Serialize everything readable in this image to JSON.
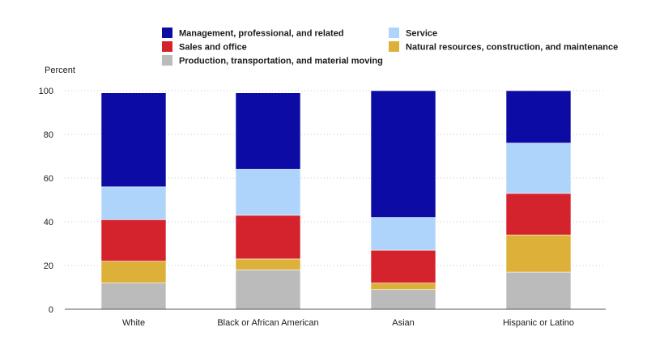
{
  "chart_data": {
    "type": "bar",
    "stacked": true,
    "categories": [
      "White",
      "Black or African American",
      "Asian",
      "Hispanic or Latino"
    ],
    "series": [
      {
        "name": "Production, transportation, and material moving",
        "color": "#bbbbbb",
        "values": [
          12,
          18,
          9,
          17
        ]
      },
      {
        "name": "Natural resources, construction, and maintenance",
        "color": "#ddb03a",
        "values": [
          10,
          5,
          3,
          17
        ]
      },
      {
        "name": "Sales and office",
        "color": "#d4232d",
        "values": [
          19,
          20,
          15,
          19
        ]
      },
      {
        "name": "Service",
        "color": "#aed4fb",
        "values": [
          15,
          21,
          15,
          23
        ]
      },
      {
        "name": "Management, professional, and related",
        "color": "#0c0ba4",
        "values": [
          43,
          35,
          58,
          24
        ]
      }
    ],
    "legend_order": [
      "Management, professional, and related",
      "Service",
      "Sales and office",
      "Natural resources, construction, and maintenance",
      "Production, transportation, and material moving"
    ],
    "title": "",
    "xlabel": "",
    "ylabel": "Percent",
    "ylim": [
      0,
      100
    ],
    "yticks": [
      0,
      20,
      40,
      60,
      80,
      100
    ],
    "grid": true,
    "legend_position": "top"
  }
}
